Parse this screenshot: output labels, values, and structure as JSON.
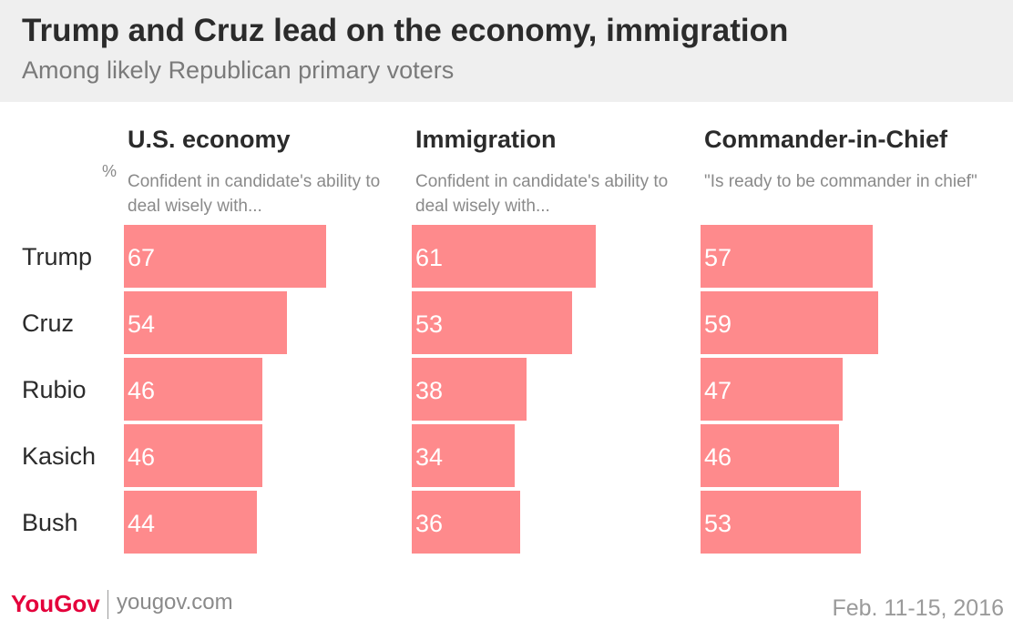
{
  "header": {
    "title": "Trump and Cruz lead on the economy, immigration",
    "subtitle": "Among likely Republican primary voters"
  },
  "footer": {
    "brand_you": "You",
    "brand_gov": "Gov",
    "site": "yougov.com",
    "date": "Feb. 11-15, 2016"
  },
  "colors": {
    "bar": "#fe8a8c",
    "brand": "#e4003b",
    "header_bg": "#efefef"
  },
  "chart_data": {
    "type": "bar",
    "orientation": "horizontal",
    "unit": "%",
    "categories": [
      "Trump",
      "Cruz",
      "Rubio",
      "Kasich",
      "Bush"
    ],
    "panels": [
      {
        "title": "U.S. economy",
        "description": "Confident in candidate's ability to deal wisely with...",
        "values": [
          67,
          54,
          46,
          46,
          44
        ]
      },
      {
        "title": "Immigration",
        "description": "Confident in candidate's ability to deal wisely with...",
        "values": [
          61,
          53,
          38,
          34,
          36
        ]
      },
      {
        "title": "Commander-in-Chief",
        "description": "\"Is ready to be commander in chief\"",
        "values": [
          57,
          59,
          47,
          46,
          53
        ]
      }
    ]
  }
}
